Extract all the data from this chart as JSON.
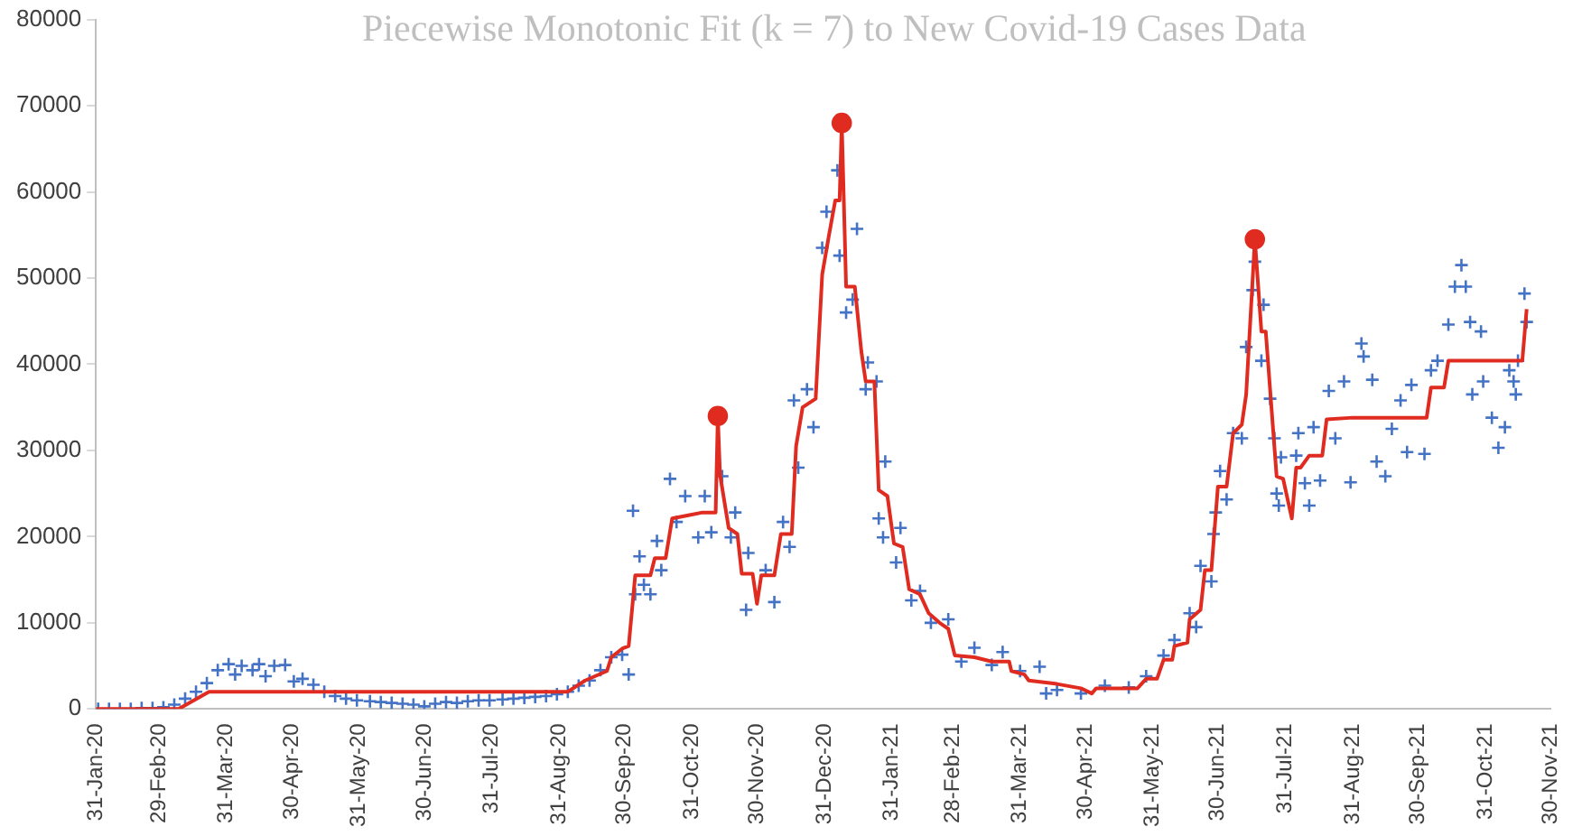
{
  "chart_data": {
    "type": "scatter",
    "title": "Piecewise Monotonic Fit (k = 7) to New Covid-19 Cases Data",
    "xlim": [
      "2020-01-31",
      "2021-11-30"
    ],
    "xticks": [
      {
        "value": "2020-01-31",
        "label": "31-Jan-20"
      },
      {
        "value": "2020-02-29",
        "label": "29-Feb-20"
      },
      {
        "value": "2020-03-31",
        "label": "31-Mar-20"
      },
      {
        "value": "2020-04-30",
        "label": "30-Apr-20"
      },
      {
        "value": "2020-05-31",
        "label": "31-May-20"
      },
      {
        "value": "2020-06-30",
        "label": "30-Jun-20"
      },
      {
        "value": "2020-07-31",
        "label": "31-Jul-20"
      },
      {
        "value": "2020-08-31",
        "label": "31-Aug-20"
      },
      {
        "value": "2020-09-30",
        "label": "30-Sep-20"
      },
      {
        "value": "2020-10-31",
        "label": "31-Oct-20"
      },
      {
        "value": "2020-11-30",
        "label": "30-Nov-20"
      },
      {
        "value": "2020-12-31",
        "label": "31-Dec-20"
      },
      {
        "value": "2021-01-31",
        "label": "31-Jan-21"
      },
      {
        "value": "2021-02-28",
        "label": "28-Feb-21"
      },
      {
        "value": "2021-03-31",
        "label": "31-Mar-21"
      },
      {
        "value": "2021-04-30",
        "label": "30-Apr-21"
      },
      {
        "value": "2021-05-31",
        "label": "31-May-21"
      },
      {
        "value": "2021-06-30",
        "label": "30-Jun-21"
      },
      {
        "value": "2021-07-31",
        "label": "31-Jul-21"
      },
      {
        "value": "2021-08-31",
        "label": "31-Aug-21"
      },
      {
        "value": "2021-09-30",
        "label": "30-Sep-21"
      },
      {
        "value": "2021-10-31",
        "label": "31-Oct-21"
      },
      {
        "value": "2021-11-30",
        "label": "30-Nov-21"
      }
    ],
    "ylim": [
      0,
      80000
    ],
    "yticks": [
      0,
      10000,
      20000,
      30000,
      40000,
      50000,
      60000,
      70000,
      80000
    ],
    "grid": false,
    "legend": false,
    "series": [
      {
        "type": "scatter",
        "marker": "cross",
        "color": "#4472c4",
        "x": [
          "2020-02-01",
          "2020-02-06",
          "2020-02-11",
          "2020-02-16",
          "2020-02-21",
          "2020-02-26",
          "2020-03-02",
          "2020-03-07",
          "2020-03-12",
          "2020-03-17",
          "2020-03-22",
          "2020-03-27",
          "2020-04-01",
          "2020-04-04",
          "2020-04-07",
          "2020-04-12",
          "2020-04-15",
          "2020-04-18",
          "2020-04-22",
          "2020-04-27",
          "2020-05-01",
          "2020-05-05",
          "2020-05-10",
          "2020-05-15",
          "2020-05-20",
          "2020-05-25",
          "2020-05-30",
          "2020-06-05",
          "2020-06-10",
          "2020-06-15",
          "2020-06-20",
          "2020-06-25",
          "2020-06-30",
          "2020-07-05",
          "2020-07-10",
          "2020-07-15",
          "2020-07-20",
          "2020-07-25",
          "2020-07-30",
          "2020-08-05",
          "2020-08-10",
          "2020-08-15",
          "2020-08-20",
          "2020-08-25",
          "2020-08-30",
          "2020-09-04",
          "2020-09-09",
          "2020-09-14",
          "2020-09-19",
          "2020-09-24",
          "2020-09-29",
          "2020-10-02",
          "2020-10-04",
          "2020-10-05",
          "2020-10-07",
          "2020-10-09",
          "2020-10-12",
          "2020-10-15",
          "2020-10-17",
          "2020-10-21",
          "2020-10-24",
          "2020-10-28",
          "2020-11-03",
          "2020-11-06",
          "2020-11-09",
          "2020-11-14",
          "2020-11-18",
          "2020-11-20",
          "2020-11-25",
          "2020-11-26",
          "2020-12-04",
          "2020-12-08",
          "2020-12-12",
          "2020-12-15",
          "2020-12-17",
          "2020-12-19",
          "2020-12-23",
          "2020-12-26",
          "2020-12-30",
          "2021-01-01",
          "2021-01-06",
          "2021-01-07",
          "2021-01-10",
          "2021-01-13",
          "2021-01-15",
          "2021-01-19",
          "2021-01-20",
          "2021-01-24",
          "2021-01-25",
          "2021-01-27",
          "2021-01-28",
          "2021-02-02",
          "2021-02-04",
          "2021-02-09",
          "2021-02-13",
          "2021-02-18",
          "2021-02-26",
          "2021-03-04",
          "2021-03-10",
          "2021-03-18",
          "2021-03-23",
          "2021-03-31",
          "2021-04-09",
          "2021-04-12",
          "2021-04-17",
          "2021-04-28",
          "2021-05-09",
          "2021-05-20",
          "2021-05-28",
          "2021-06-05",
          "2021-06-10",
          "2021-06-17",
          "2021-06-20",
          "2021-06-22",
          "2021-06-27",
          "2021-06-28",
          "2021-06-29",
          "2021-07-01",
          "2021-07-04",
          "2021-07-07",
          "2021-07-11",
          "2021-07-13",
          "2021-07-16",
          "2021-07-17",
          "2021-07-20",
          "2021-07-21",
          "2021-07-24",
          "2021-07-26",
          "2021-07-27",
          "2021-07-28",
          "2021-07-29",
          "2021-08-05",
          "2021-08-06",
          "2021-08-09",
          "2021-08-11",
          "2021-08-13",
          "2021-08-16",
          "2021-08-20",
          "2021-08-23",
          "2021-08-27",
          "2021-08-30",
          "2021-09-04",
          "2021-09-05",
          "2021-09-09",
          "2021-09-11",
          "2021-09-15",
          "2021-09-18",
          "2021-09-22",
          "2021-09-25",
          "2021-09-27",
          "2021-10-03",
          "2021-10-06",
          "2021-10-09",
          "2021-10-14",
          "2021-10-17",
          "2021-10-20",
          "2021-10-22",
          "2021-10-24",
          "2021-10-25",
          "2021-10-29",
          "2021-10-30",
          "2021-11-03",
          "2021-11-06",
          "2021-11-09",
          "2021-11-11",
          "2021-11-13",
          "2021-11-14",
          "2021-11-15",
          "2021-11-18",
          "2021-11-19"
        ],
        "values": [
          0,
          0,
          0,
          0,
          100,
          100,
          200,
          500,
          1200,
          2000,
          3000,
          4500,
          5200,
          4000,
          5000,
          4500,
          5200,
          3800,
          5000,
          5100,
          3200,
          3500,
          2800,
          2000,
          1500,
          1200,
          1000,
          900,
          800,
          700,
          600,
          500,
          300,
          600,
          800,
          700,
          900,
          1000,
          1000,
          1100,
          1200,
          1300,
          1400,
          1500,
          1700,
          2000,
          2700,
          3300,
          4500,
          6000,
          6300,
          4000,
          23000,
          13300,
          17700,
          14400,
          13300,
          19500,
          16100,
          26700,
          21700,
          24700,
          19900,
          24700,
          20500,
          27000,
          19900,
          22800,
          11500,
          18100,
          16100,
          12400,
          21700,
          18800,
          35800,
          28000,
          37100,
          32700,
          53500,
          57700,
          62500,
          52600,
          46000,
          47500,
          55700,
          37100,
          40200,
          38000,
          22100,
          19900,
          28700,
          17000,
          21000,
          12600,
          13700,
          10000,
          10400,
          5500,
          7100,
          5100,
          6600,
          4400,
          4900,
          1800,
          2200,
          1800,
          2700,
          2500,
          3800,
          6200,
          8000,
          11100,
          9500,
          16600,
          14800,
          20300,
          22800,
          27600,
          24300,
          32000,
          31400,
          42000,
          48600,
          51900,
          40400,
          46900,
          36000,
          31400,
          25000,
          23600,
          29200,
          29400,
          32000,
          26200,
          23600,
          32700,
          26500,
          36900,
          31400,
          38000,
          26300,
          42400,
          40900,
          38200,
          28700,
          27000,
          32500,
          35800,
          29800,
          37600,
          29600,
          39300,
          40400,
          44600,
          49000,
          51500,
          49000,
          44900,
          36500,
          43800,
          38000,
          33800,
          30300,
          32700,
          39300,
          38000,
          36500,
          40400,
          48200,
          44900
        ]
      },
      {
        "type": "line",
        "marker": "none",
        "line_style": "solid",
        "color": "#e02b20",
        "x": [
          "2020-01-31",
          "2020-03-09",
          "2020-03-23",
          "2020-09-04",
          "2020-09-12",
          "2020-09-22",
          "2020-09-24",
          "2020-09-29",
          "2020-10-02",
          "2020-10-05",
          "2020-10-12",
          "2020-10-14",
          "2020-10-19",
          "2020-10-22",
          "2020-10-30",
          "2020-11-05",
          "2020-11-11",
          "2020-11-12",
          "2020-11-13",
          "2020-11-17",
          "2020-11-21",
          "2020-11-23",
          "2020-11-28",
          "2020-11-30",
          "2020-12-02",
          "2020-12-08",
          "2020-12-11",
          "2020-12-16",
          "2020-12-18",
          "2020-12-21",
          "2020-12-27",
          "2020-12-30",
          "2021-01-02",
          "2021-01-05",
          "2021-01-07",
          "2021-01-08",
          "2021-01-10",
          "2021-01-14",
          "2021-01-17",
          "2021-01-19",
          "2021-01-23",
          "2021-01-25",
          "2021-01-29",
          "2021-02-01",
          "2021-02-05",
          "2021-02-08",
          "2021-02-13",
          "2021-02-17",
          "2021-02-22",
          "2021-02-26",
          "2021-03-01",
          "2021-03-10",
          "2021-03-18",
          "2021-03-26",
          "2021-03-27",
          "2021-04-02",
          "2021-04-04",
          "2021-04-17",
          "2021-04-28",
          "2021-05-03",
          "2021-05-05",
          "2021-05-24",
          "2021-05-28",
          "2021-06-02",
          "2021-06-05",
          "2021-06-09",
          "2021-06-10",
          "2021-06-16",
          "2021-06-17",
          "2021-06-22",
          "2021-06-24",
          "2021-06-27",
          "2021-06-30",
          "2021-07-04",
          "2021-07-07",
          "2021-07-11",
          "2021-07-13",
          "2021-07-17",
          "2021-07-20",
          "2021-07-22",
          "2021-07-27",
          "2021-07-30",
          "2021-08-03",
          "2021-08-05",
          "2021-08-07",
          "2021-08-11",
          "2021-08-17",
          "2021-08-19",
          "2021-08-31",
          "2021-10-04",
          "2021-10-06",
          "2021-10-12",
          "2021-10-14",
          "2021-11-17",
          "2021-11-19"
        ],
        "values": [
          0,
          0,
          2000,
          2000,
          3300,
          4400,
          6000,
          7000,
          7300,
          15500,
          15500,
          17500,
          17500,
          22100,
          22500,
          22800,
          22800,
          34000,
          27200,
          21000,
          20300,
          15700,
          15700,
          12200,
          15500,
          15500,
          20300,
          20300,
          30500,
          35000,
          36000,
          50400,
          54800,
          59000,
          59000,
          68000,
          49000,
          49000,
          41500,
          38000,
          38000,
          25400,
          24700,
          19200,
          18800,
          13900,
          13300,
          11100,
          10000,
          9300,
          6200,
          6000,
          5500,
          5500,
          4400,
          4000,
          3300,
          2900,
          2400,
          1800,
          2400,
          2400,
          3500,
          3500,
          5700,
          5700,
          7300,
          7700,
          10400,
          11500,
          16100,
          16100,
          25800,
          25800,
          32000,
          33000,
          36500,
          54500,
          43800,
          43800,
          27000,
          26700,
          22100,
          28000,
          28000,
          29400,
          29400,
          33600,
          33800,
          33800,
          37300,
          37300,
          40400,
          40400,
          46400
        ]
      },
      {
        "type": "scatter",
        "marker": "circle",
        "color": "#e02b20",
        "x": [
          "2020-11-12",
          "2021-01-08",
          "2021-07-17"
        ],
        "values": [
          34000,
          68000,
          54500
        ]
      }
    ]
  }
}
